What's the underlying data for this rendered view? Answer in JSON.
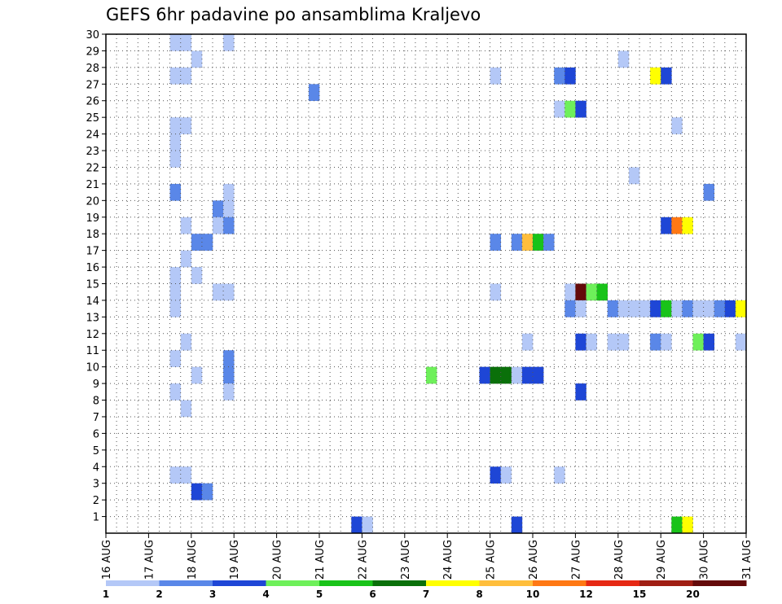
{
  "chart_data": {
    "type": "heatmap",
    "title": "GEFS 6hr padavine po ansamblima Kraljevo",
    "xlabel": "",
    "ylabel": "",
    "x_ticks": [
      "16 AUG",
      "17 AUG",
      "18 AUG",
      "19 AUG",
      "20 AUG",
      "21 AUG",
      "22 AUG",
      "23 AUG",
      "24 AUG",
      "25 AUG",
      "26 AUG",
      "27 AUG",
      "28 AUG",
      "29 AUG",
      "30 AUG",
      "31 AUG"
    ],
    "y_ticks": [
      "1",
      "2",
      "3",
      "4",
      "5",
      "6",
      "7",
      "8",
      "9",
      "10",
      "11",
      "12",
      "13",
      "14",
      "15",
      "16",
      "17",
      "18",
      "19",
      "20",
      "21",
      "22",
      "23",
      "24",
      "25",
      "26",
      "27",
      "28",
      "29",
      "30"
    ],
    "xlim": [
      0,
      60
    ],
    "ylim": [
      0,
      30
    ],
    "x_unit": "6-hour step from 16 AUG 00Z",
    "y_unit": "ensemble member",
    "grid": true,
    "legend": {
      "position": "bottom",
      "labels": [
        "1",
        "2",
        "3",
        "4",
        "5",
        "6",
        "7",
        "8",
        "10",
        "12",
        "15",
        "20"
      ],
      "colors": [
        "#b4c8f7",
        "#5a87e8",
        "#1e46d6",
        "#6ef05a",
        "#19c319",
        "#0a700a",
        "#ffff00",
        "#ffbe3c",
        "#ff7814",
        "#e62814",
        "#a01e14",
        "#640a0a"
      ]
    },
    "cells": [
      {
        "x": 6,
        "y": 29,
        "v": 1
      },
      {
        "x": 7,
        "y": 29,
        "v": 1
      },
      {
        "x": 11,
        "y": 29,
        "v": 1
      },
      {
        "x": 8,
        "y": 28,
        "v": 1
      },
      {
        "x": 48,
        "y": 28,
        "v": 1
      },
      {
        "x": 6,
        "y": 27,
        "v": 1
      },
      {
        "x": 7,
        "y": 27,
        "v": 1
      },
      {
        "x": 36,
        "y": 27,
        "v": 1
      },
      {
        "x": 42,
        "y": 27,
        "v": 2
      },
      {
        "x": 43,
        "y": 27,
        "v": 3
      },
      {
        "x": 51,
        "y": 27,
        "v": 7
      },
      {
        "x": 52,
        "y": 27,
        "v": 3
      },
      {
        "x": 19,
        "y": 26,
        "v": 2
      },
      {
        "x": 42,
        "y": 25,
        "v": 1
      },
      {
        "x": 43,
        "y": 25,
        "v": 4
      },
      {
        "x": 44,
        "y": 25,
        "v": 3
      },
      {
        "x": 6,
        "y": 24,
        "v": 1
      },
      {
        "x": 7,
        "y": 24,
        "v": 1
      },
      {
        "x": 53,
        "y": 24,
        "v": 1
      },
      {
        "x": 6,
        "y": 23,
        "v": 1
      },
      {
        "x": 6,
        "y": 22,
        "v": 1
      },
      {
        "x": 49,
        "y": 21,
        "v": 1
      },
      {
        "x": 6,
        "y": 20,
        "v": 2
      },
      {
        "x": 11,
        "y": 20,
        "v": 1
      },
      {
        "x": 56,
        "y": 20,
        "v": 2
      },
      {
        "x": 10,
        "y": 19,
        "v": 2
      },
      {
        "x": 11,
        "y": 19,
        "v": 1
      },
      {
        "x": 7,
        "y": 18,
        "v": 1
      },
      {
        "x": 10,
        "y": 18,
        "v": 1
      },
      {
        "x": 11,
        "y": 18,
        "v": 2
      },
      {
        "x": 52,
        "y": 18,
        "v": 3
      },
      {
        "x": 53,
        "y": 18,
        "v": 10
      },
      {
        "x": 54,
        "y": 18,
        "v": 7
      },
      {
        "x": 8,
        "y": 17,
        "v": 2
      },
      {
        "x": 9,
        "y": 17,
        "v": 2
      },
      {
        "x": 36,
        "y": 17,
        "v": 2
      },
      {
        "x": 38,
        "y": 17,
        "v": 2
      },
      {
        "x": 39,
        "y": 17,
        "v": 8
      },
      {
        "x": 40,
        "y": 17,
        "v": 5
      },
      {
        "x": 41,
        "y": 17,
        "v": 2
      },
      {
        "x": 7,
        "y": 16,
        "v": 1
      },
      {
        "x": 6,
        "y": 15,
        "v": 1
      },
      {
        "x": 8,
        "y": 15,
        "v": 1
      },
      {
        "x": 6,
        "y": 14,
        "v": 1
      },
      {
        "x": 10,
        "y": 14,
        "v": 1
      },
      {
        "x": 11,
        "y": 14,
        "v": 1
      },
      {
        "x": 36,
        "y": 14,
        "v": 1
      },
      {
        "x": 43,
        "y": 14,
        "v": 1
      },
      {
        "x": 44,
        "y": 14,
        "v": 20
      },
      {
        "x": 45,
        "y": 14,
        "v": 4
      },
      {
        "x": 46,
        "y": 14,
        "v": 5
      },
      {
        "x": 6,
        "y": 13,
        "v": 1
      },
      {
        "x": 43,
        "y": 13,
        "v": 2
      },
      {
        "x": 44,
        "y": 13,
        "v": 1
      },
      {
        "x": 47,
        "y": 13,
        "v": 2
      },
      {
        "x": 48,
        "y": 13,
        "v": 1
      },
      {
        "x": 49,
        "y": 13,
        "v": 1
      },
      {
        "x": 50,
        "y": 13,
        "v": 1
      },
      {
        "x": 51,
        "y": 13,
        "v": 3
      },
      {
        "x": 52,
        "y": 13,
        "v": 5
      },
      {
        "x": 53,
        "y": 13,
        "v": 1
      },
      {
        "x": 54,
        "y": 13,
        "v": 2
      },
      {
        "x": 55,
        "y": 13,
        "v": 1
      },
      {
        "x": 56,
        "y": 13,
        "v": 1
      },
      {
        "x": 57,
        "y": 13,
        "v": 2
      },
      {
        "x": 58,
        "y": 13,
        "v": 3
      },
      {
        "x": 59,
        "y": 13,
        "v": 7
      },
      {
        "x": 7,
        "y": 11,
        "v": 1
      },
      {
        "x": 39,
        "y": 11,
        "v": 1
      },
      {
        "x": 44,
        "y": 11,
        "v": 3
      },
      {
        "x": 45,
        "y": 11,
        "v": 1
      },
      {
        "x": 47,
        "y": 11,
        "v": 1
      },
      {
        "x": 48,
        "y": 11,
        "v": 1
      },
      {
        "x": 51,
        "y": 11,
        "v": 2
      },
      {
        "x": 52,
        "y": 11,
        "v": 1
      },
      {
        "x": 55,
        "y": 11,
        "v": 4
      },
      {
        "x": 56,
        "y": 11,
        "v": 3
      },
      {
        "x": 59,
        "y": 11,
        "v": 1
      },
      {
        "x": 6,
        "y": 10,
        "v": 1
      },
      {
        "x": 11,
        "y": 10,
        "v": 2
      },
      {
        "x": 8,
        "y": 9,
        "v": 1
      },
      {
        "x": 11,
        "y": 9,
        "v": 2
      },
      {
        "x": 30,
        "y": 9,
        "v": 4
      },
      {
        "x": 35,
        "y": 9,
        "v": 3
      },
      {
        "x": 36,
        "y": 9,
        "v": 6
      },
      {
        "x": 37,
        "y": 9,
        "v": 6
      },
      {
        "x": 38,
        "y": 9,
        "v": 1
      },
      {
        "x": 39,
        "y": 9,
        "v": 3
      },
      {
        "x": 40,
        "y": 9,
        "v": 3
      },
      {
        "x": 6,
        "y": 8,
        "v": 1
      },
      {
        "x": 11,
        "y": 8,
        "v": 1
      },
      {
        "x": 44,
        "y": 8,
        "v": 3
      },
      {
        "x": 7,
        "y": 7,
        "v": 1
      },
      {
        "x": 6,
        "y": 3,
        "v": 1
      },
      {
        "x": 7,
        "y": 3,
        "v": 1
      },
      {
        "x": 36,
        "y": 3,
        "v": 3
      },
      {
        "x": 37,
        "y": 3,
        "v": 1
      },
      {
        "x": 42,
        "y": 3,
        "v": 1
      },
      {
        "x": 8,
        "y": 2,
        "v": 3
      },
      {
        "x": 9,
        "y": 2,
        "v": 2
      },
      {
        "x": 23,
        "y": 0,
        "v": 3
      },
      {
        "x": 24,
        "y": 0,
        "v": 1
      },
      {
        "x": 38,
        "y": 0,
        "v": 3
      },
      {
        "x": 53,
        "y": 0,
        "v": 5
      },
      {
        "x": 54,
        "y": 0,
        "v": 7
      }
    ]
  }
}
